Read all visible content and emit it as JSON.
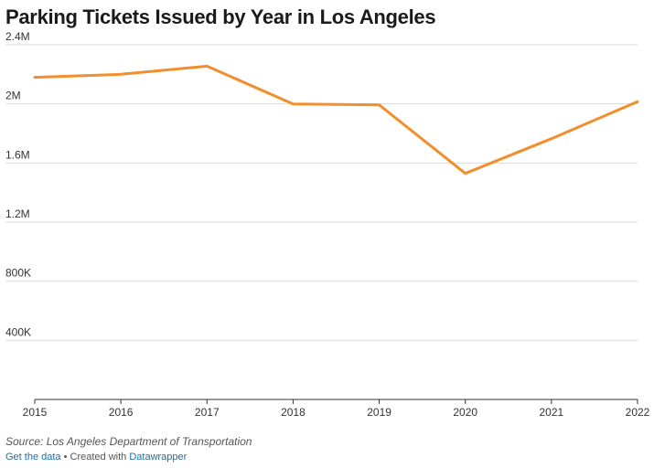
{
  "chart_data": {
    "type": "line",
    "title": "Parking Tickets Issued by Year in Los Angeles",
    "x": [
      2015,
      2016,
      2017,
      2018,
      2019,
      2020,
      2021,
      2022
    ],
    "x_tick_labels": [
      "2015",
      "2016",
      "2017",
      "2018",
      "2019",
      "2020",
      "2021",
      "2022"
    ],
    "series": [
      {
        "values": [
          2180000,
          2200000,
          2255000,
          2000000,
          1993000,
          1530000,
          1765000,
          2015000
        ]
      }
    ],
    "ylim": [
      0,
      2400000
    ],
    "y_ticks": [
      400000,
      800000,
      1200000,
      1600000,
      2000000,
      2400000
    ],
    "y_tick_labels": [
      "400K",
      "800K",
      "1.2M",
      "1.6M",
      "2M",
      "2.4M"
    ],
    "grid": true,
    "line_color": "#f28e2b"
  },
  "source": "Source: Los Angeles Department of Transportation",
  "footer": {
    "get_data_label": "Get the data",
    "separator": " • Created with ",
    "datawrapper_label": "Datawrapper"
  }
}
